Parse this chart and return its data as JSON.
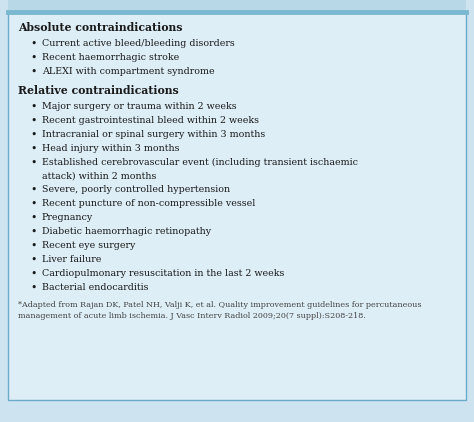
{
  "bg_color": "#cde4f0",
  "inner_bg": "#ddeef6",
  "border_color": "#6baac8",
  "top_bar_color": "#7ab8d0",
  "text_color": "#1a1a1a",
  "footnote_color": "#444444",
  "section1_header": "Absolute contraindications",
  "section1_items": [
    "Current active bleed/bleeding disorders",
    "Recent haemorrhagic stroke",
    "ALEXI with compartment syndrome"
  ],
  "section2_header": "Relative contraindications",
  "section2_items": [
    "Major surgery or trauma within 2 weeks",
    "Recent gastrointestinal bleed within 2 weeks",
    "Intracranial or spinal surgery within 3 months",
    "Head injury within 3 months",
    "Established cerebrovascular event (including transient ischaemic\nattack) within 2 months",
    "Severe, poorly controlled hypertension",
    "Recent puncture of non-compressible vessel",
    "Pregnancy",
    "Diabetic haemorrhagic retinopathy",
    "Recent eye surgery",
    "Liver failure",
    "Cardiopulmonary resuscitation in the last 2 weeks",
    "Bacterial endocarditis"
  ],
  "footnote_line1": "*Adapted from Rajan DK, Patel NH, Valji K, et al. Quality improvement guidelines for percutaneous",
  "footnote_line2": "management of acute limb ischemia. J Vasc Interv Radiol 2009;20(7 suppl):S208-218.",
  "section_header_fontsize": 7.8,
  "item_fontsize": 6.8,
  "footnote_fontsize": 5.8
}
